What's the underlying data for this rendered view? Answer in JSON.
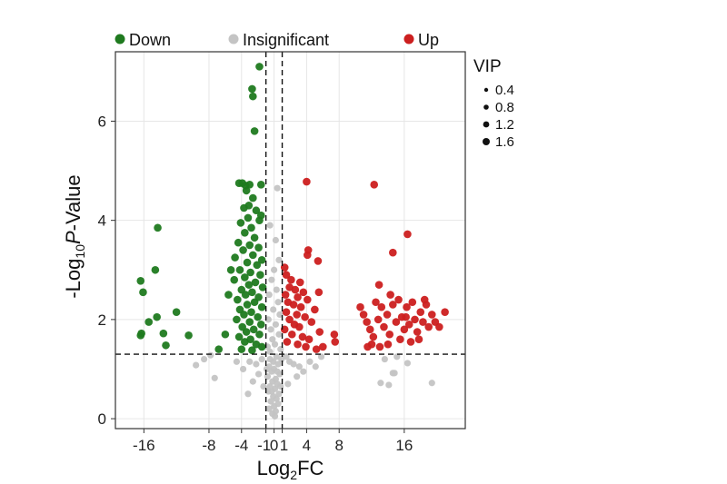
{
  "chart_data": {
    "type": "scatter",
    "title": "",
    "xlabel": {
      "base": "Log",
      "sub": "2",
      "tail": "FC"
    },
    "ylabel": {
      "pre": "-Log",
      "sub": "10",
      "italic": "P",
      "tail": "-Value"
    },
    "xlim": [
      -19.5,
      23.5
    ],
    "ylim": [
      -0.2,
      7.4
    ],
    "x_ticks": [
      -16,
      -8,
      -4,
      -1,
      0,
      1,
      4,
      8,
      16
    ],
    "x_tick_labels": [
      "-16",
      "-8",
      "-4",
      "-1",
      "0",
      "1",
      "4",
      "8",
      "16"
    ],
    "y_ticks": [
      0,
      2,
      4,
      6
    ],
    "y_tick_labels": [
      "0",
      "2",
      "4",
      "6"
    ],
    "grid": true,
    "thresholds": {
      "fc_low": -1,
      "fc_high": 1,
      "p_value_line": 1.3
    },
    "legend": {
      "position": "top",
      "entries": [
        {
          "name": "Down",
          "color": "#1f7a1f"
        },
        {
          "name": "Insignificant",
          "color": "#c4c4c4"
        },
        {
          "name": "Up",
          "color": "#cc1f1f"
        }
      ]
    },
    "size_legend": {
      "title": "VIP",
      "position": "right",
      "entries": [
        {
          "label": "0.4",
          "vip": 0.4
        },
        {
          "label": "0.8",
          "vip": 0.8
        },
        {
          "label": "1.2",
          "vip": 1.2
        },
        {
          "label": "1.6",
          "vip": 1.6
        }
      ]
    },
    "series": [
      {
        "name": "Down",
        "color": "#1f7a1f",
        "points": [
          [
            -1.8,
            7.1
          ],
          [
            -2.7,
            6.65
          ],
          [
            -2.6,
            6.5
          ],
          [
            -2.4,
            5.8
          ],
          [
            -16.4,
            2.78
          ],
          [
            -16.1,
            2.55
          ],
          [
            -16.3,
            1.72
          ],
          [
            -16.4,
            1.68
          ],
          [
            -14.3,
            3.85
          ],
          [
            -14.6,
            3.0
          ],
          [
            -14.4,
            2.05
          ],
          [
            -13.6,
            1.72
          ],
          [
            -13.3,
            1.48
          ],
          [
            -12.0,
            2.15
          ],
          [
            -10.5,
            1.68
          ],
          [
            -15.4,
            1.95
          ],
          [
            -6.8,
            1.4
          ],
          [
            -6.0,
            1.7
          ],
          [
            -5.6,
            2.5
          ],
          [
            -5.3,
            3.0
          ],
          [
            -4.3,
            4.75
          ],
          [
            -3.9,
            4.75
          ],
          [
            -3.5,
            4.7
          ],
          [
            -3.0,
            4.72
          ],
          [
            -1.6,
            4.72
          ],
          [
            -3.4,
            4.6
          ],
          [
            -2.6,
            4.45
          ],
          [
            -3.1,
            4.3
          ],
          [
            -3.7,
            4.25
          ],
          [
            -2.2,
            4.2
          ],
          [
            -3.2,
            4.05
          ],
          [
            -4.1,
            3.95
          ],
          [
            -1.8,
            4.0
          ],
          [
            -2.8,
            3.85
          ],
          [
            -3.6,
            3.75
          ],
          [
            -1.6,
            4.1
          ],
          [
            -2.4,
            3.65
          ],
          [
            -4.4,
            3.55
          ],
          [
            -3.0,
            3.5
          ],
          [
            -1.9,
            3.45
          ],
          [
            -3.8,
            3.4
          ],
          [
            -2.6,
            3.3
          ],
          [
            -4.8,
            3.25
          ],
          [
            -1.5,
            3.2
          ],
          [
            -3.3,
            3.15
          ],
          [
            -2.1,
            3.1
          ],
          [
            -4.2,
            3.0
          ],
          [
            -2.9,
            2.95
          ],
          [
            -1.7,
            2.9
          ],
          [
            -3.6,
            2.85
          ],
          [
            -4.9,
            2.8
          ],
          [
            -2.3,
            2.75
          ],
          [
            -3.1,
            2.7
          ],
          [
            -1.4,
            2.65
          ],
          [
            -4.0,
            2.6
          ],
          [
            -2.7,
            2.55
          ],
          [
            -3.5,
            2.5
          ],
          [
            -1.9,
            2.45
          ],
          [
            -4.5,
            2.4
          ],
          [
            -2.4,
            2.35
          ],
          [
            -3.3,
            2.3
          ],
          [
            -1.5,
            2.25
          ],
          [
            -4.2,
            2.2
          ],
          [
            -2.8,
            2.15
          ],
          [
            -3.7,
            2.1
          ],
          [
            -2.0,
            2.05
          ],
          [
            -4.6,
            2.0
          ],
          [
            -3.0,
            1.95
          ],
          [
            -1.6,
            1.9
          ],
          [
            -3.9,
            1.85
          ],
          [
            -2.5,
            1.8
          ],
          [
            -3.4,
            1.75
          ],
          [
            -1.8,
            1.7
          ],
          [
            -4.3,
            1.65
          ],
          [
            -2.9,
            1.6
          ],
          [
            -3.6,
            1.55
          ],
          [
            -2.2,
            1.5
          ],
          [
            -1.5,
            1.45
          ],
          [
            -4.0,
            1.4
          ],
          [
            -2.7,
            1.38
          ]
        ]
      },
      {
        "name": "Insignificant",
        "color": "#c4c4c4",
        "points": [
          [
            0.4,
            4.65
          ],
          [
            0.2,
            3.6
          ],
          [
            -0.5,
            3.9
          ],
          [
            0.6,
            3.2
          ],
          [
            0.0,
            3.0
          ],
          [
            -0.3,
            2.8
          ],
          [
            0.3,
            2.6
          ],
          [
            -0.6,
            2.5
          ],
          [
            0.5,
            2.35
          ],
          [
            -0.1,
            2.2
          ],
          [
            0.7,
            2.1
          ],
          [
            -0.7,
            2.0
          ],
          [
            0.2,
            1.9
          ],
          [
            -0.4,
            1.8
          ],
          [
            0.6,
            1.7
          ],
          [
            -0.2,
            1.6
          ],
          [
            0.1,
            1.5
          ],
          [
            -0.8,
            1.45
          ],
          [
            0.8,
            1.4
          ],
          [
            -0.5,
            1.35
          ],
          [
            0.3,
            1.25
          ],
          [
            -0.1,
            1.15
          ],
          [
            0.5,
            1.1
          ],
          [
            -0.6,
            1.05
          ],
          [
            0.0,
            1.0
          ],
          [
            -0.3,
            0.95
          ],
          [
            0.7,
            0.9
          ],
          [
            -0.8,
            0.85
          ],
          [
            0.2,
            0.8
          ],
          [
            -0.2,
            0.75
          ],
          [
            0.4,
            0.7
          ],
          [
            -0.5,
            0.65
          ],
          [
            0.1,
            0.6
          ],
          [
            -0.7,
            0.55
          ],
          [
            0.6,
            0.5
          ],
          [
            -0.1,
            0.45
          ],
          [
            0.3,
            0.4
          ],
          [
            -0.4,
            0.35
          ],
          [
            0.5,
            0.3
          ],
          [
            0.0,
            0.25
          ],
          [
            -0.6,
            0.2
          ],
          [
            0.2,
            0.15
          ],
          [
            -0.2,
            0.1
          ],
          [
            0.1,
            0.05
          ],
          [
            -0.3,
            0.55
          ],
          [
            0.4,
            0.95
          ],
          [
            -0.5,
            1.2
          ],
          [
            0.8,
            0.65
          ],
          [
            -0.9,
            1.0
          ],
          [
            0.9,
            1.2
          ],
          [
            1.5,
            1.25
          ],
          [
            1.9,
            1.15
          ],
          [
            2.4,
            1.1
          ],
          [
            3.1,
            1.05
          ],
          [
            3.6,
            0.95
          ],
          [
            4.4,
            1.15
          ],
          [
            5.1,
            1.05
          ],
          [
            5.8,
            1.25
          ],
          [
            2.8,
            0.85
          ],
          [
            1.7,
            0.7
          ],
          [
            -1.5,
            1.2
          ],
          [
            -2.2,
            1.1
          ],
          [
            -3.0,
            1.15
          ],
          [
            -3.8,
            1.0
          ],
          [
            -2.6,
            0.75
          ],
          [
            -1.9,
            0.9
          ],
          [
            -1.3,
            0.65
          ],
          [
            -4.6,
            1.15
          ],
          [
            -3.2,
            0.5
          ],
          [
            -7.8,
            1.28
          ],
          [
            -8.6,
            1.2
          ],
          [
            -9.6,
            1.08
          ],
          [
            -7.3,
            0.82
          ],
          [
            13.6,
            1.2
          ],
          [
            14.6,
            0.92
          ],
          [
            15.1,
            1.25
          ],
          [
            13.1,
            0.72
          ],
          [
            14.1,
            0.68
          ],
          [
            16.4,
            1.12
          ],
          [
            19.4,
            0.72
          ],
          [
            14.8,
            0.92
          ]
        ]
      },
      {
        "name": "Up",
        "color": "#cc1f1f",
        "points": [
          [
            4.0,
            4.78
          ],
          [
            12.3,
            4.72
          ],
          [
            16.4,
            3.72
          ],
          [
            14.6,
            3.35
          ],
          [
            5.4,
            3.18
          ],
          [
            4.2,
            3.4
          ],
          [
            4.1,
            3.3
          ],
          [
            5.5,
            2.55
          ],
          [
            12.9,
            2.7
          ],
          [
            14.3,
            2.5
          ],
          [
            1.3,
            3.05
          ],
          [
            1.5,
            2.9
          ],
          [
            2.1,
            2.8
          ],
          [
            3.2,
            2.75
          ],
          [
            1.9,
            2.65
          ],
          [
            2.6,
            2.6
          ],
          [
            3.6,
            2.55
          ],
          [
            1.4,
            2.5
          ],
          [
            2.9,
            2.45
          ],
          [
            4.1,
            2.4
          ],
          [
            1.7,
            2.35
          ],
          [
            2.4,
            2.3
          ],
          [
            3.3,
            2.25
          ],
          [
            5.0,
            2.2
          ],
          [
            1.5,
            2.15
          ],
          [
            2.8,
            2.1
          ],
          [
            3.8,
            2.05
          ],
          [
            1.9,
            2.0
          ],
          [
            4.6,
            1.95
          ],
          [
            2.5,
            1.9
          ],
          [
            3.1,
            1.85
          ],
          [
            1.3,
            1.8
          ],
          [
            5.6,
            1.75
          ],
          [
            2.2,
            1.7
          ],
          [
            3.5,
            1.65
          ],
          [
            4.3,
            1.6
          ],
          [
            1.6,
            1.55
          ],
          [
            2.9,
            1.5
          ],
          [
            3.9,
            1.45
          ],
          [
            5.2,
            1.4
          ],
          [
            6.0,
            1.45
          ],
          [
            7.4,
            1.7
          ],
          [
            7.5,
            1.55
          ],
          [
            10.6,
            2.25
          ],
          [
            11.0,
            2.1
          ],
          [
            11.4,
            1.95
          ],
          [
            11.8,
            1.8
          ],
          [
            12.2,
            1.65
          ],
          [
            12.5,
            2.35
          ],
          [
            12.8,
            2.0
          ],
          [
            13.2,
            2.25
          ],
          [
            13.5,
            1.85
          ],
          [
            13.9,
            2.1
          ],
          [
            14.2,
            1.7
          ],
          [
            14.6,
            2.3
          ],
          [
            15.0,
            1.95
          ],
          [
            15.3,
            2.4
          ],
          [
            15.7,
            2.05
          ],
          [
            16.0,
            1.8
          ],
          [
            16.3,
            2.25
          ],
          [
            16.6,
            1.9
          ],
          [
            17.0,
            2.35
          ],
          [
            17.3,
            2.0
          ],
          [
            17.6,
            1.75
          ],
          [
            18.0,
            2.15
          ],
          [
            18.3,
            1.95
          ],
          [
            18.7,
            2.3
          ],
          [
            19.0,
            1.85
          ],
          [
            19.4,
            2.1
          ],
          [
            19.8,
            1.95
          ],
          [
            20.3,
            1.85
          ],
          [
            21.0,
            2.15
          ],
          [
            16.8,
            1.55
          ],
          [
            15.5,
            1.6
          ],
          [
            14.0,
            1.5
          ],
          [
            12.0,
            1.5
          ],
          [
            11.5,
            1.45
          ],
          [
            17.8,
            1.6
          ],
          [
            13.0,
            1.45
          ],
          [
            18.5,
            2.4
          ],
          [
            16.2,
            2.05
          ]
        ]
      }
    ]
  }
}
